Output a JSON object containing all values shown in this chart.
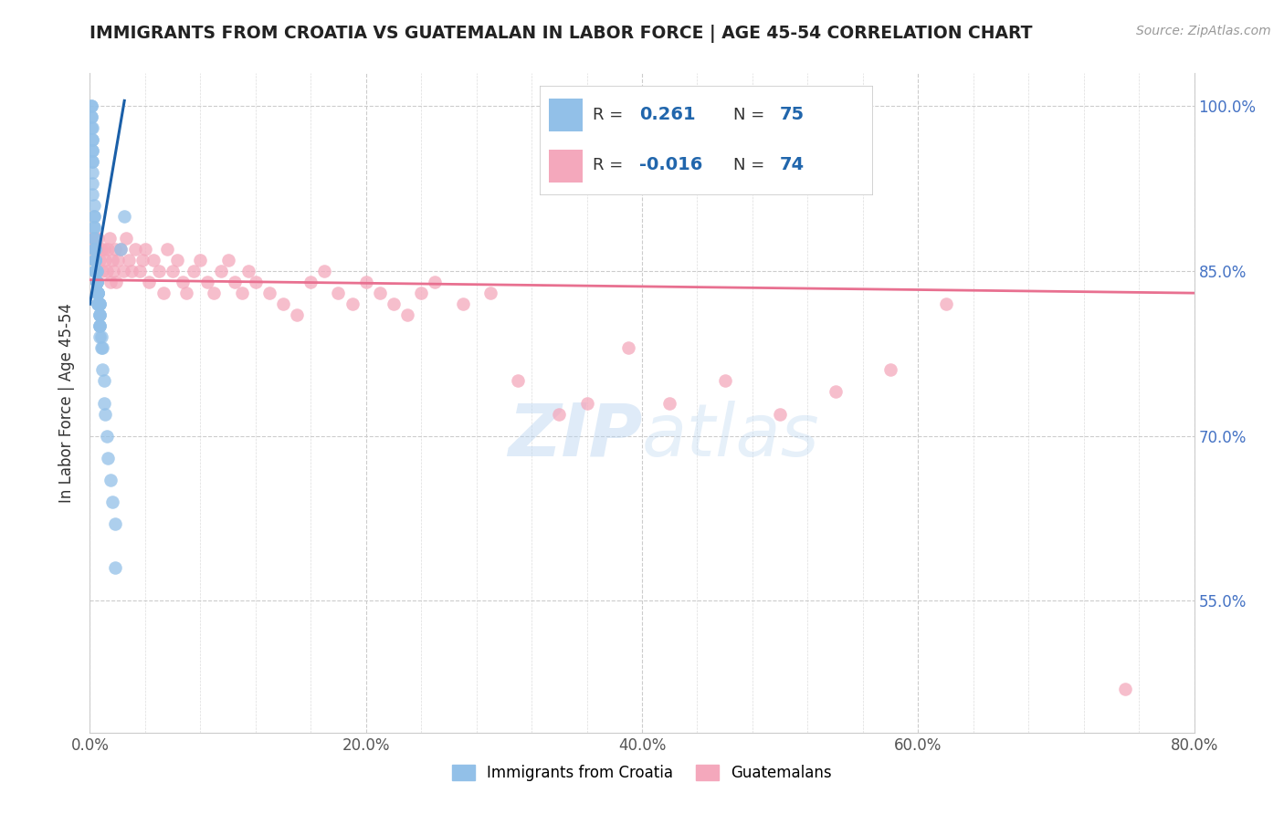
{
  "title": "IMMIGRANTS FROM CROATIA VS GUATEMALAN IN LABOR FORCE | AGE 45-54 CORRELATION CHART",
  "source": "Source: ZipAtlas.com",
  "ylabel": "In Labor Force | Age 45-54",
  "xlim": [
    0.0,
    0.8
  ],
  "ylim": [
    0.43,
    1.03
  ],
  "xtick_labels": [
    "0.0%",
    "",
    "",
    "",
    "",
    "20.0%",
    "",
    "",
    "",
    "",
    "40.0%",
    "",
    "",
    "",
    "",
    "60.0%",
    "",
    "",
    "",
    "",
    "80.0%"
  ],
  "xtick_vals": [
    0.0,
    0.04,
    0.08,
    0.12,
    0.16,
    0.2,
    0.24,
    0.28,
    0.32,
    0.36,
    0.4,
    0.44,
    0.48,
    0.52,
    0.56,
    0.6,
    0.64,
    0.68,
    0.72,
    0.76,
    0.8
  ],
  "xtick_major_labels": [
    "0.0%",
    "20.0%",
    "40.0%",
    "60.0%",
    "80.0%"
  ],
  "xtick_major_vals": [
    0.0,
    0.2,
    0.4,
    0.6,
    0.8
  ],
  "ytick_labels": [
    "55.0%",
    "70.0%",
    "85.0%",
    "100.0%"
  ],
  "ytick_vals": [
    0.55,
    0.7,
    0.85,
    1.0
  ],
  "r_croatia": 0.261,
  "n_croatia": 75,
  "r_guatemalan": -0.016,
  "n_guatemalan": 74,
  "color_croatia": "#92C0E8",
  "color_guatemalan": "#F4A8BC",
  "color_line_croatia": "#1A5FA8",
  "color_line_guatemalan": "#E87090",
  "legend_label_croatia": "Immigrants from Croatia",
  "legend_label_guatemalan": "Guatemalans",
  "croatia_x": [
    0.001,
    0.001,
    0.001,
    0.001,
    0.001,
    0.002,
    0.002,
    0.002,
    0.002,
    0.002,
    0.002,
    0.002,
    0.002,
    0.002,
    0.002,
    0.003,
    0.003,
    0.003,
    0.003,
    0.003,
    0.003,
    0.003,
    0.003,
    0.004,
    0.004,
    0.004,
    0.004,
    0.004,
    0.004,
    0.004,
    0.004,
    0.004,
    0.004,
    0.004,
    0.005,
    0.005,
    0.005,
    0.005,
    0.005,
    0.005,
    0.005,
    0.005,
    0.006,
    0.006,
    0.006,
    0.006,
    0.006,
    0.006,
    0.006,
    0.006,
    0.007,
    0.007,
    0.007,
    0.007,
    0.007,
    0.007,
    0.007,
    0.007,
    0.007,
    0.007,
    0.008,
    0.008,
    0.009,
    0.009,
    0.01,
    0.01,
    0.011,
    0.012,
    0.013,
    0.015,
    0.016,
    0.018,
    0.018,
    0.022,
    0.025
  ],
  "croatia_y": [
    1.0,
    1.0,
    0.99,
    0.99,
    0.98,
    0.98,
    0.97,
    0.97,
    0.96,
    0.96,
    0.95,
    0.95,
    0.94,
    0.93,
    0.92,
    0.91,
    0.9,
    0.9,
    0.89,
    0.89,
    0.88,
    0.88,
    0.87,
    0.87,
    0.87,
    0.86,
    0.86,
    0.86,
    0.86,
    0.86,
    0.85,
    0.85,
    0.85,
    0.85,
    0.85,
    0.85,
    0.84,
    0.84,
    0.84,
    0.84,
    0.84,
    0.83,
    0.83,
    0.83,
    0.83,
    0.83,
    0.83,
    0.82,
    0.82,
    0.82,
    0.82,
    0.82,
    0.82,
    0.81,
    0.81,
    0.81,
    0.8,
    0.8,
    0.8,
    0.79,
    0.79,
    0.78,
    0.78,
    0.76,
    0.75,
    0.73,
    0.72,
    0.7,
    0.68,
    0.66,
    0.64,
    0.62,
    0.58,
    0.87,
    0.9
  ],
  "guatemalan_x": [
    0.002,
    0.003,
    0.004,
    0.004,
    0.005,
    0.006,
    0.007,
    0.008,
    0.009,
    0.01,
    0.011,
    0.012,
    0.013,
    0.014,
    0.015,
    0.016,
    0.017,
    0.018,
    0.019,
    0.02,
    0.022,
    0.024,
    0.026,
    0.028,
    0.03,
    0.033,
    0.036,
    0.038,
    0.04,
    0.043,
    0.046,
    0.05,
    0.053,
    0.056,
    0.06,
    0.063,
    0.067,
    0.07,
    0.075,
    0.08,
    0.085,
    0.09,
    0.095,
    0.1,
    0.105,
    0.11,
    0.115,
    0.12,
    0.13,
    0.14,
    0.15,
    0.16,
    0.17,
    0.18,
    0.19,
    0.2,
    0.21,
    0.22,
    0.23,
    0.24,
    0.25,
    0.27,
    0.29,
    0.31,
    0.34,
    0.36,
    0.39,
    0.42,
    0.46,
    0.5,
    0.54,
    0.58,
    0.62,
    0.75
  ],
  "guatemalan_y": [
    0.88,
    0.87,
    0.88,
    0.86,
    0.87,
    0.88,
    0.86,
    0.87,
    0.85,
    0.87,
    0.86,
    0.85,
    0.87,
    0.88,
    0.84,
    0.86,
    0.85,
    0.87,
    0.84,
    0.86,
    0.87,
    0.85,
    0.88,
    0.86,
    0.85,
    0.87,
    0.85,
    0.86,
    0.87,
    0.84,
    0.86,
    0.85,
    0.83,
    0.87,
    0.85,
    0.86,
    0.84,
    0.83,
    0.85,
    0.86,
    0.84,
    0.83,
    0.85,
    0.86,
    0.84,
    0.83,
    0.85,
    0.84,
    0.83,
    0.82,
    0.81,
    0.84,
    0.85,
    0.83,
    0.82,
    0.84,
    0.83,
    0.82,
    0.81,
    0.83,
    0.84,
    0.82,
    0.83,
    0.75,
    0.72,
    0.73,
    0.78,
    0.73,
    0.75,
    0.72,
    0.74,
    0.76,
    0.82,
    0.47
  ],
  "trendline_croatia_x0": 0.0,
  "trendline_croatia_x1": 0.025,
  "trendline_croatia_y0": 0.82,
  "trendline_croatia_y1": 1.005,
  "trendline_guatemalan_x0": 0.0,
  "trendline_guatemalan_x1": 0.8,
  "trendline_guatemalan_y0": 0.842,
  "trendline_guatemalan_y1": 0.83
}
